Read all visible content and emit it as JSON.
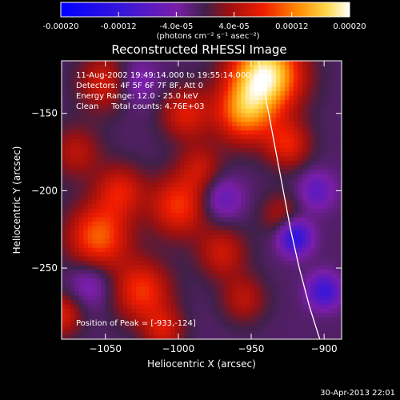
{
  "colorbar": {
    "ticks": [
      "-0.00020",
      "-0.00012",
      "-4.0e-05",
      "4.0e-05",
      "0.00012",
      "0.00020"
    ],
    "unit_line": "(photons cm⁻² s⁻¹ asec⁻²)"
  },
  "chart_data": {
    "type": "heatmap",
    "title": "Reconstructed RHESSI Image",
    "xlabel": "Heliocentric X (arcsec)",
    "ylabel": "Heliocentric Y (arcsec)",
    "xlim": [
      -1080,
      -888
    ],
    "ylim": [
      -296,
      -116
    ],
    "x_ticks": [
      -1050,
      -1000,
      -950,
      -900
    ],
    "y_ticks": [
      -150,
      -200,
      -250
    ],
    "x_tick_labels": [
      "−1050",
      "−1000",
      "−950",
      "−900"
    ],
    "y_tick_labels": [
      "−150",
      "−200",
      "−250"
    ],
    "color_range": [
      -0.0002,
      0.0002
    ],
    "colorscale": "RHESSI blue-purple-red-yellow-white",
    "annotations": [
      "11-Aug-2002 19:49:14.000 to 19:55:14.000",
      "Detectors: 4F 5F 6F 7F 8F, Att 0",
      "Energy Range: 12.0 - 25.0 keV",
      "Clean     Total counts: 4.76E+03"
    ],
    "peak_label": "Position of Peak = [-933,-124]",
    "peak": [
      -933,
      -124
    ],
    "limb_points": [
      [
        -945,
        -116
      ],
      [
        -942,
        -130
      ],
      [
        -938,
        -150
      ],
      [
        -933,
        -175
      ],
      [
        -928,
        -200
      ],
      [
        -923,
        -225
      ],
      [
        -917,
        -250
      ],
      [
        -910,
        -275
      ],
      [
        -903,
        -296
      ]
    ],
    "sources": [
      {
        "x": -940,
        "y": -125,
        "amp": 0.0002,
        "sigma": 17
      },
      {
        "x": -955,
        "y": -150,
        "amp": 0.00012,
        "sigma": 14
      },
      {
        "x": -925,
        "y": -170,
        "amp": 8.5e-05,
        "sigma": 11
      },
      {
        "x": -1055,
        "y": -230,
        "amp": 0.00012,
        "sigma": 15
      },
      {
        "x": -1025,
        "y": -265,
        "amp": 0.0001,
        "sigma": 14
      },
      {
        "x": -1040,
        "y": -200,
        "amp": 8e-05,
        "sigma": 12
      },
      {
        "x": -1050,
        "y": -130,
        "amp": 8e-05,
        "sigma": 13
      },
      {
        "x": -1070,
        "y": -175,
        "amp": 6e-05,
        "sigma": 12
      },
      {
        "x": -1000,
        "y": -210,
        "amp": 0.0001,
        "sigma": 14
      },
      {
        "x": -985,
        "y": -185,
        "amp": 6e-05,
        "sigma": 11
      },
      {
        "x": -970,
        "y": -240,
        "amp": 7e-05,
        "sigma": 12
      },
      {
        "x": -930,
        "y": -215,
        "amp": 5e-05,
        "sigma": 10
      },
      {
        "x": -995,
        "y": -150,
        "amp": 8e-05,
        "sigma": 12
      },
      {
        "x": -1010,
        "y": -290,
        "amp": 7e-05,
        "sigma": 10
      },
      {
        "x": -955,
        "y": -270,
        "amp": 6e-05,
        "sigma": 11
      },
      {
        "x": -1080,
        "y": -280,
        "amp": 8e-05,
        "sigma": 10
      },
      {
        "x": -1030,
        "y": -130,
        "amp": -5e-05,
        "sigma": 11
      },
      {
        "x": -920,
        "y": -230,
        "amp": -0.00012,
        "sigma": 8
      },
      {
        "x": -900,
        "y": -265,
        "amp": -0.0001,
        "sigma": 8
      },
      {
        "x": -905,
        "y": -200,
        "amp": -6e-05,
        "sigma": 9
      },
      {
        "x": -970,
        "y": -205,
        "amp": -6e-05,
        "sigma": 10
      },
      {
        "x": -1060,
        "y": -260,
        "amp": -5e-05,
        "sigma": 11
      }
    ]
  },
  "footer": {
    "timestamp": "30-Apr-2013 22:01"
  }
}
